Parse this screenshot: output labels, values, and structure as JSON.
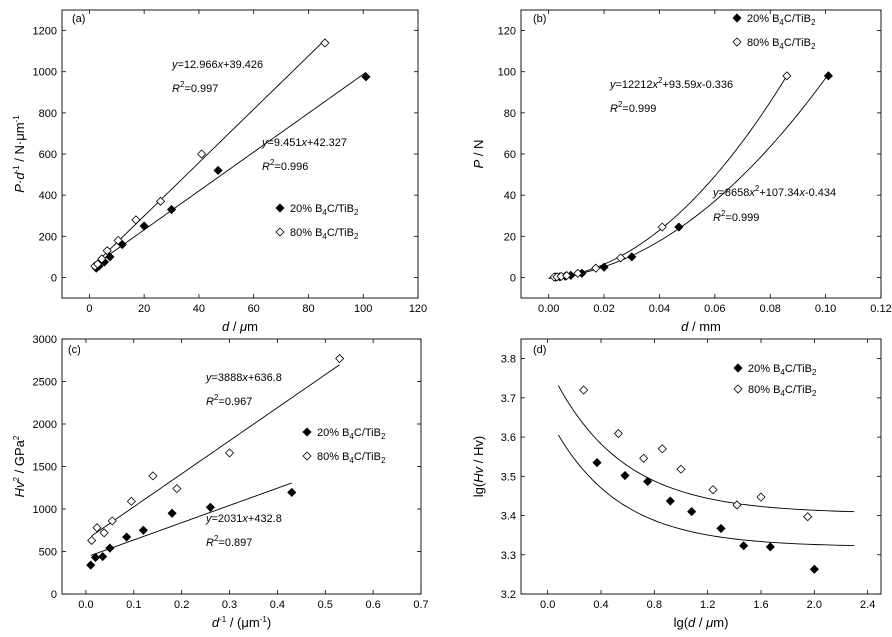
{
  "chart_data": [
    {
      "type": "scatter",
      "panel_label": "(a)",
      "xlim": [
        -10,
        120
      ],
      "ylim": [
        -100,
        1300
      ],
      "xticks": [
        0,
        20,
        40,
        60,
        80,
        100,
        120
      ],
      "yticks": [
        0,
        200,
        400,
        600,
        800,
        1000,
        1200
      ],
      "x_tick_labels": [
        "0",
        "20",
        "40",
        "60",
        "80",
        "100",
        "120"
      ],
      "y_tick_labels": [
        "0",
        "200",
        "400",
        "600",
        "800",
        "1000",
        "1200"
      ],
      "xlabel": {
        "v1": "d",
        "t1": " / ",
        "v2": "μ",
        "t2": "m"
      },
      "ylabel": {
        "v1": "P",
        "t1": "·",
        "v2": "d",
        "s1": "-1",
        "t2": " / N·μm",
        "s2": "-1"
      },
      "legend": [
        {
          "name": {
            "a": "20% B",
            "b": "4",
            "c": "C/TiB",
            "d": "2"
          },
          "marker": "filled-diamond"
        },
        {
          "name": {
            "a": "80% B",
            "b": "4",
            "c": "C/TiB",
            "d": "2"
          },
          "marker": "open-diamond"
        }
      ],
      "series": [
        {
          "marker": "filled-diamond",
          "x": [
            2.5,
            3.5,
            5.5,
            7.5,
            12,
            20,
            30,
            47,
            101
          ],
          "y": [
            45,
            55,
            75,
            100,
            160,
            250,
            330,
            520,
            975
          ],
          "fit": {
            "slope": 9.451,
            "intercept": 42.327,
            "x_range": [
              2,
              101
            ]
          }
        },
        {
          "marker": "open-diamond",
          "x": [
            2,
            3,
            4.5,
            6.5,
            10.5,
            17,
            26,
            41,
            86
          ],
          "y": [
            55,
            65,
            90,
            130,
            180,
            280,
            370,
            600,
            1140
          ],
          "fit": {
            "slope": 12.966,
            "intercept": 39.426,
            "x_range": [
              2,
              86
            ]
          }
        }
      ],
      "equations": [
        {
          "y": "y",
          "eq": "=12.966",
          "x": "x",
          "rest": "+39.426",
          "r": "R",
          "r2": "2",
          "rv": "=0.997"
        },
        {
          "y": "y",
          "eq": "=9.451",
          "x": "x",
          "rest": "+42.327",
          "r": "R",
          "r2": "2",
          "rv": "=0.996"
        }
      ]
    },
    {
      "type": "scatter",
      "panel_label": "(b)",
      "xlim": [
        -0.01,
        0.12
      ],
      "ylim": [
        -10,
        130
      ],
      "xticks": [
        0,
        0.02,
        0.04,
        0.06,
        0.08,
        0.1,
        0.12
      ],
      "yticks": [
        0,
        20,
        40,
        60,
        80,
        100,
        120
      ],
      "x_tick_labels": [
        "0.00",
        "0.02",
        "0.04",
        "0.06",
        "0.08",
        "0.10",
        "0.12"
      ],
      "y_tick_labels": [
        "0",
        "20",
        "40",
        "60",
        "80",
        "100",
        "120"
      ],
      "xlabel": {
        "v1": "d",
        "t1": " / mm"
      },
      "ylabel": {
        "v1": "P",
        "t1": " / N"
      },
      "legend": [
        {
          "name": {
            "a": "20% B",
            "b": "4",
            "c": "C/TiB",
            "d": "2"
          },
          "marker": "filled-diamond"
        },
        {
          "name": {
            "a": "80% B",
            "b": "4",
            "c": "C/TiB",
            "d": "2"
          },
          "marker": "open-diamond"
        }
      ],
      "series": [
        {
          "marker": "filled-diamond",
          "x": [
            0.0025,
            0.004,
            0.006,
            0.008,
            0.012,
            0.02,
            0.03,
            0.047,
            0.101
          ],
          "y": [
            0.2,
            0.3,
            0.6,
            1,
            2,
            5,
            10,
            24.5,
            98
          ],
          "fit": {
            "a": 8658,
            "b": 107.34,
            "c": -0.434,
            "x_range": [
              0,
              0.101
            ]
          }
        },
        {
          "marker": "open-diamond",
          "x": [
            0.002,
            0.003,
            0.0045,
            0.0065,
            0.0105,
            0.017,
            0.026,
            0.041,
            0.086
          ],
          "y": [
            0.2,
            0.3,
            0.5,
            0.9,
            2,
            4.5,
            9.5,
            24.5,
            98
          ],
          "fit": {
            "a": 12212,
            "b": 93.59,
            "c": -0.336,
            "x_range": [
              0,
              0.086
            ]
          }
        }
      ],
      "equations": [
        {
          "y": "y",
          "eq": "=12212",
          "x": "x",
          "s": "2",
          "mid": "+93.59",
          "x2": "x",
          "rest": "-0.336",
          "r": "R",
          "r2": "2",
          "rv": "=0.999"
        },
        {
          "y": "y",
          "eq": "=8658",
          "x": "x",
          "s": "2",
          "mid": "+107.34",
          "x2": "x",
          "rest": "-0.434",
          "r": "R",
          "r2": "2",
          "rv": "=0.999"
        }
      ]
    },
    {
      "type": "scatter",
      "panel_label": "(c)",
      "xlim": [
        -0.05,
        0.7
      ],
      "ylim": [
        0,
        3000
      ],
      "xticks": [
        0,
        0.1,
        0.2,
        0.3,
        0.4,
        0.5,
        0.6,
        0.7
      ],
      "yticks": [
        0,
        500,
        1000,
        1500,
        2000,
        2500,
        3000
      ],
      "x_tick_labels": [
        "0.0",
        "0.1",
        "0.2",
        "0.3",
        "0.4",
        "0.5",
        "0.6",
        "0.7"
      ],
      "y_tick_labels": [
        "0",
        "500",
        "1000",
        "1500",
        "2000",
        "2500",
        "3000"
      ],
      "xlabel": {
        "v1": "d",
        "s1": "-1",
        "t1": " / (μm",
        "s2": "-1",
        "t2": ")"
      },
      "ylabel": {
        "v1": "Hv",
        "s1": "2",
        "t1": " / GPa",
        "s2": "2"
      },
      "legend": [
        {
          "name": {
            "a": "20% B",
            "b": "4",
            "c": "C/TiB",
            "d": "2"
          },
          "marker": "filled-diamond"
        },
        {
          "name": {
            "a": "80% B",
            "b": "4",
            "c": "C/TiB",
            "d": "2"
          },
          "marker": "open-diamond"
        }
      ],
      "series": [
        {
          "marker": "filled-diamond",
          "x": [
            0.01,
            0.02,
            0.035,
            0.05,
            0.085,
            0.12,
            0.18,
            0.26,
            0.43
          ],
          "y": [
            340,
            430,
            440,
            540,
            670,
            750,
            950,
            1020,
            1195
          ],
          "fit": {
            "slope": 2031,
            "intercept": 432.8,
            "x_range": [
              0.01,
              0.43
            ]
          }
        },
        {
          "marker": "open-diamond",
          "x": [
            0.012,
            0.023,
            0.038,
            0.055,
            0.095,
            0.14,
            0.19,
            0.3,
            0.53
          ],
          "y": [
            630,
            780,
            720,
            860,
            1090,
            1390,
            1240,
            1660,
            2770
          ],
          "fit": {
            "slope": 3888,
            "intercept": 636.8,
            "x_range": [
              0.012,
              0.53
            ]
          }
        }
      ],
      "equations": [
        {
          "y": "y",
          "eq": "=3888",
          "x": "x",
          "rest": "+636.8",
          "r": "R",
          "r2": "2",
          "rv": "=0.967"
        },
        {
          "y": "y",
          "eq": "=2031",
          "x": "x",
          "rest": "+432.8",
          "r": "R",
          "r2": "2",
          "rv": "=0.897"
        }
      ]
    },
    {
      "type": "scatter",
      "panel_label": "(d)",
      "xlim": [
        -0.2,
        2.5
      ],
      "ylim": [
        3.2,
        3.85
      ],
      "xticks": [
        0,
        0.4,
        0.8,
        1.2,
        1.6,
        2.0,
        2.4
      ],
      "yticks": [
        3.2,
        3.3,
        3.4,
        3.5,
        3.6,
        3.7,
        3.8
      ],
      "x_tick_labels": [
        "0.0",
        "0.4",
        "0.8",
        "1.2",
        "1.6",
        "2.0",
        "2.4"
      ],
      "y_tick_labels": [
        "3.2",
        "3.3",
        "3.4",
        "3.5",
        "3.6",
        "3.7",
        "3.8"
      ],
      "xlabel": {
        "t1": "lg(",
        "v1": "d",
        "t2": " / ",
        "v2": "μ",
        "t3": "m)"
      },
      "ylabel": {
        "t1": "lg(",
        "v1": "Hv",
        "t2": " / Hv)"
      },
      "legend": [
        {
          "name": {
            "a": "20% B",
            "b": "4",
            "c": "C/TiB",
            "d": "2"
          },
          "marker": "filled-diamond"
        },
        {
          "name": {
            "a": "80% B",
            "b": "4",
            "c": "C/TiB",
            "d": "2"
          },
          "marker": "open-diamond"
        }
      ],
      "series": [
        {
          "marker": "filled-diamond",
          "x": [
            0.37,
            0.58,
            0.75,
            0.92,
            1.08,
            1.3,
            1.47,
            1.67,
            2.0
          ],
          "y": [
            3.535,
            3.502,
            3.487,
            3.437,
            3.41,
            3.367,
            3.323,
            3.32,
            3.263
          ],
          "fit": {
            "asymptote": 3.32,
            "amplitude": 0.335,
            "decay": 2.0,
            "x_range": [
              0.08,
              2.3
            ]
          }
        },
        {
          "marker": "open-diamond",
          "x": [
            0.27,
            0.53,
            0.72,
            0.86,
            1.0,
            1.24,
            1.42,
            1.6,
            1.95
          ],
          "y": [
            3.72,
            3.609,
            3.546,
            3.57,
            3.518,
            3.466,
            3.427,
            3.447,
            3.397
          ],
          "fit": {
            "asymptote": 3.405,
            "amplitude": 0.38,
            "decay": 1.9,
            "x_range": [
              0.08,
              2.3
            ]
          }
        }
      ]
    }
  ]
}
